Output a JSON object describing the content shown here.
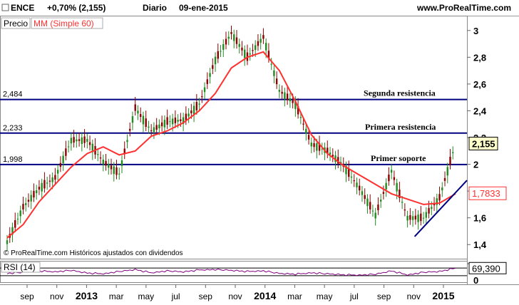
{
  "header": {
    "symbol": "ENCE",
    "change": "+0,70% (2,155)",
    "period": "Diario",
    "date": "09-ene-2015",
    "brand": "www.ProRealTime.com"
  },
  "legend": {
    "price_label": "Precio",
    "ma_label": "MM (Simple 60)"
  },
  "footer_note": "© ProRealTime.com  Históricos ajustados con dividendos",
  "colors": {
    "candle": "#228b22",
    "candle_down": "#8b0000",
    "ma": "#ff3030",
    "levels": "#000080",
    "trendline": "#000080",
    "rsi": "#800080"
  },
  "chart_data": [
    {
      "type": "candlestick",
      "title": "",
      "ylim": [
        1.3,
        3.1
      ],
      "yticks": [
        "3",
        "2,8",
        "2,6",
        "2,4",
        "2,2",
        "2",
        "1,8",
        "1,6",
        "1,4"
      ],
      "xticks": [
        "sep",
        "nov",
        "2013",
        "mar",
        "may",
        "jul",
        "sep",
        "nov",
        "2014",
        "mar",
        "may",
        "jul",
        "sep",
        "nov",
        "2015"
      ],
      "last_price": "2,155",
      "ma_last": "1,7833",
      "price_series": {
        "x": [
          "sep 2012",
          "oct 2012",
          "nov 2012",
          "dic 2012",
          "ene 2013",
          "feb 2013",
          "mar 2013",
          "abr 2013",
          "may 2013",
          "jun 2013",
          "jul 2013",
          "ago 2013",
          "sep 2013",
          "oct 2013",
          "nov 2013",
          "dic 2013",
          "ene 2014",
          "feb 2014",
          "mar 2014",
          "abr 2014",
          "may 2014",
          "jun 2014",
          "jul 2014",
          "ago 2014",
          "sep 2014",
          "oct 2014",
          "nov 2014",
          "dic 2014",
          "ene 2015"
        ],
        "values": [
          1.42,
          1.68,
          1.82,
          1.9,
          2.18,
          2.18,
          2.02,
          1.93,
          2.42,
          2.25,
          2.32,
          2.33,
          2.45,
          2.78,
          2.98,
          2.8,
          2.95,
          2.55,
          2.45,
          2.15,
          2.1,
          1.99,
          1.82,
          1.62,
          1.95,
          1.6,
          1.6,
          1.75,
          2.155
        ]
      },
      "ma_series": {
        "name": "MM (Simple 60)",
        "values": [
          1.45,
          1.55,
          1.72,
          1.85,
          1.98,
          2.08,
          2.13,
          2.07,
          2.1,
          2.21,
          2.25,
          2.31,
          2.4,
          2.53,
          2.72,
          2.8,
          2.84,
          2.7,
          2.47,
          2.22,
          2.08,
          1.99,
          1.92,
          1.85,
          1.78,
          1.74,
          1.7,
          1.71,
          1.78
        ]
      },
      "levels": [
        {
          "value": 2.484,
          "label": "2,484",
          "name": "Segunda resistencia"
        },
        {
          "value": 2.233,
          "label": "2,233",
          "name": "Primera resistencia"
        },
        {
          "value": 1.998,
          "label": "1,998",
          "name": "Primer soporte"
        }
      ],
      "trendline": {
        "from": [
          "oct 2014",
          1.46
        ],
        "to": [
          "ene 2015",
          1.88
        ]
      }
    },
    {
      "type": "line",
      "title": "RSI (14)",
      "ylim": [
        0,
        100
      ],
      "yticks": [
        "100",
        "0"
      ],
      "last_value": "69,390",
      "values": [
        42,
        48,
        55,
        50,
        58,
        44,
        40,
        52,
        62,
        45,
        55,
        50,
        60,
        62,
        58,
        52,
        55,
        42,
        38,
        45,
        40,
        35,
        33,
        38,
        55,
        34,
        48,
        52,
        69.39
      ]
    }
  ]
}
